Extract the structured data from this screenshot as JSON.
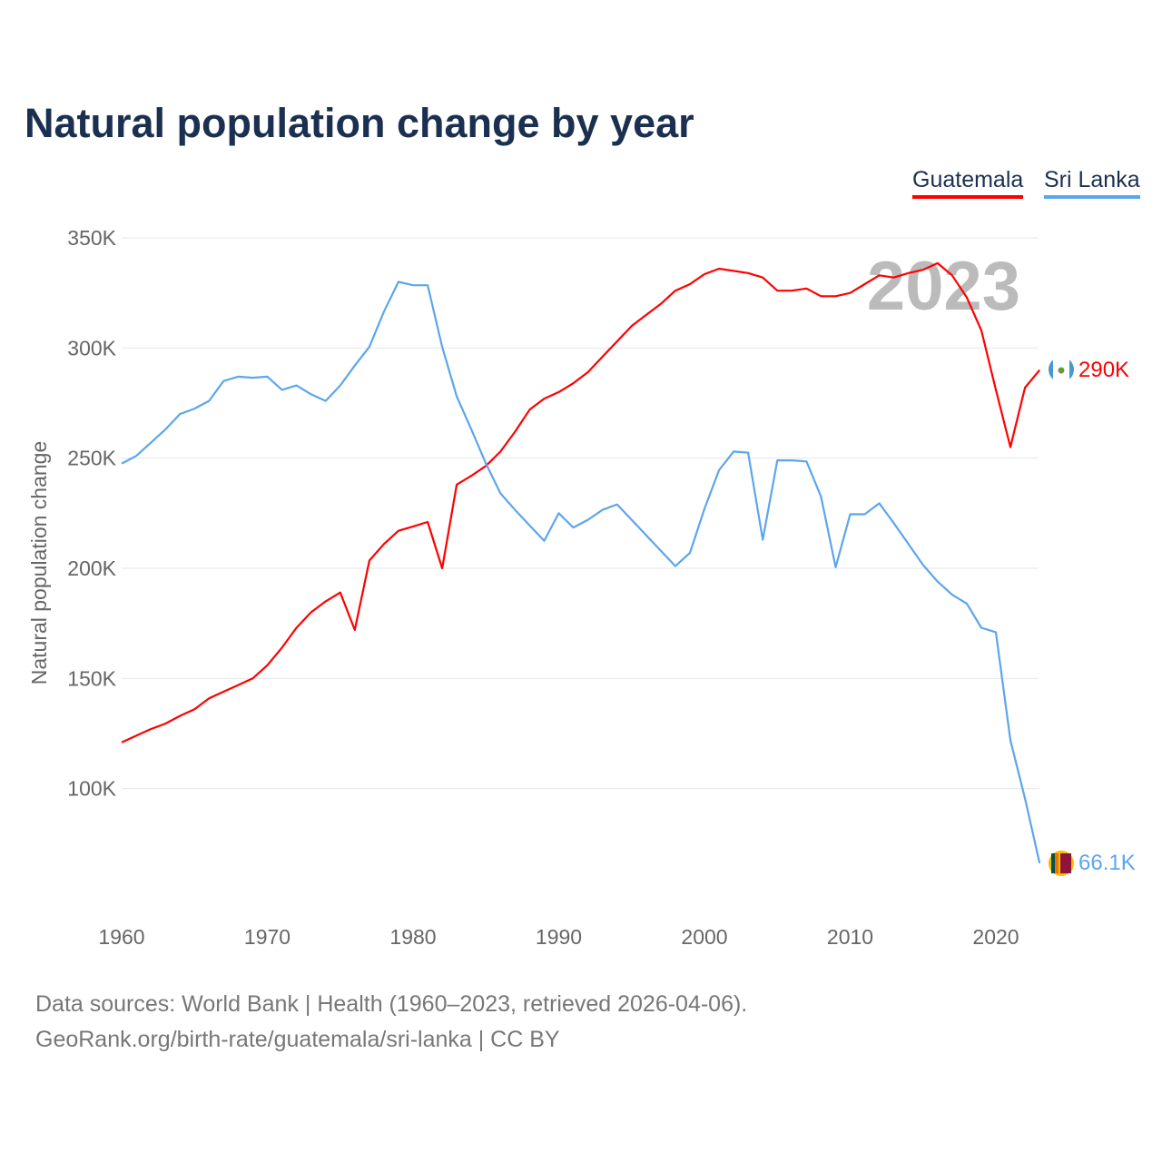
{
  "title": "Natural population change by year",
  "legend": [
    {
      "name": "Guatemala",
      "color": "#ff0000"
    },
    {
      "name": "Sri Lanka",
      "color": "#5da5ec"
    }
  ],
  "year_label": "2023",
  "end_labels": {
    "Guatemala": "290K",
    "Sri Lanka": "66.1K"
  },
  "source": {
    "line1": "Data sources: World Bank | Health (1960–2023, retrieved 2026-04-06).",
    "line2": "GeoRank.org/birth-rate/guatemala/sri-lanka | CC BY"
  },
  "chart_data": {
    "type": "line",
    "title": "Natural population change by year",
    "xlabel": "",
    "ylabel": "Natural population change",
    "xlim": [
      1960,
      2023
    ],
    "ylim": [
      50,
      350
    ],
    "y_unit": "thousands",
    "grid": true,
    "legend_position": "top-right",
    "x_ticks": [
      "1960",
      "1970",
      "1980",
      "1990",
      "2000",
      "2010",
      "2020"
    ],
    "y_ticks": [
      {
        "v": 100,
        "label": "100K"
      },
      {
        "v": 150,
        "label": "150K"
      },
      {
        "v": 200,
        "label": "200K"
      },
      {
        "v": 250,
        "label": "250K"
      },
      {
        "v": 300,
        "label": "300K"
      },
      {
        "v": 350,
        "label": "350K"
      }
    ],
    "x_start": 1960,
    "series": [
      {
        "name": "Guatemala",
        "color": "#ff0000",
        "values": [
          121,
          124,
          127,
          129.5,
          133,
          136,
          141,
          144,
          147,
          150,
          156,
          164,
          173,
          180,
          185,
          189,
          172,
          203.5,
          211,
          217,
          219,
          221,
          200,
          238,
          242,
          246.5,
          253,
          262,
          272,
          277,
          280,
          284,
          289,
          296,
          303,
          310,
          315,
          320,
          326,
          329,
          333.5,
          336,
          335,
          334,
          332,
          326,
          326,
          327,
          323.5,
          323.5,
          325,
          329,
          333,
          332,
          334,
          335.5,
          338.5,
          333,
          323,
          308,
          281,
          255,
          282,
          290
        ]
      },
      {
        "name": "Sri Lanka",
        "color": "#5da5ec",
        "values": [
          247.5,
          251,
          257,
          263,
          270,
          272.5,
          276,
          285,
          287,
          286.5,
          287,
          281,
          283,
          279,
          276,
          283,
          292,
          300.5,
          316.5,
          330,
          328.5,
          328.5,
          300.5,
          278,
          263,
          247.5,
          234,
          226.5,
          219.5,
          212.5,
          225,
          218.5,
          222,
          226.5,
          229,
          222,
          215,
          208,
          201,
          207,
          227,
          244.5,
          253,
          252.5,
          213,
          249,
          249,
          248.5,
          232.5,
          200.5,
          224.5,
          224.5,
          229.5,
          220.5,
          211,
          201.5,
          194,
          188,
          184,
          173,
          171,
          122,
          95.5,
          66.1
        ]
      }
    ]
  }
}
